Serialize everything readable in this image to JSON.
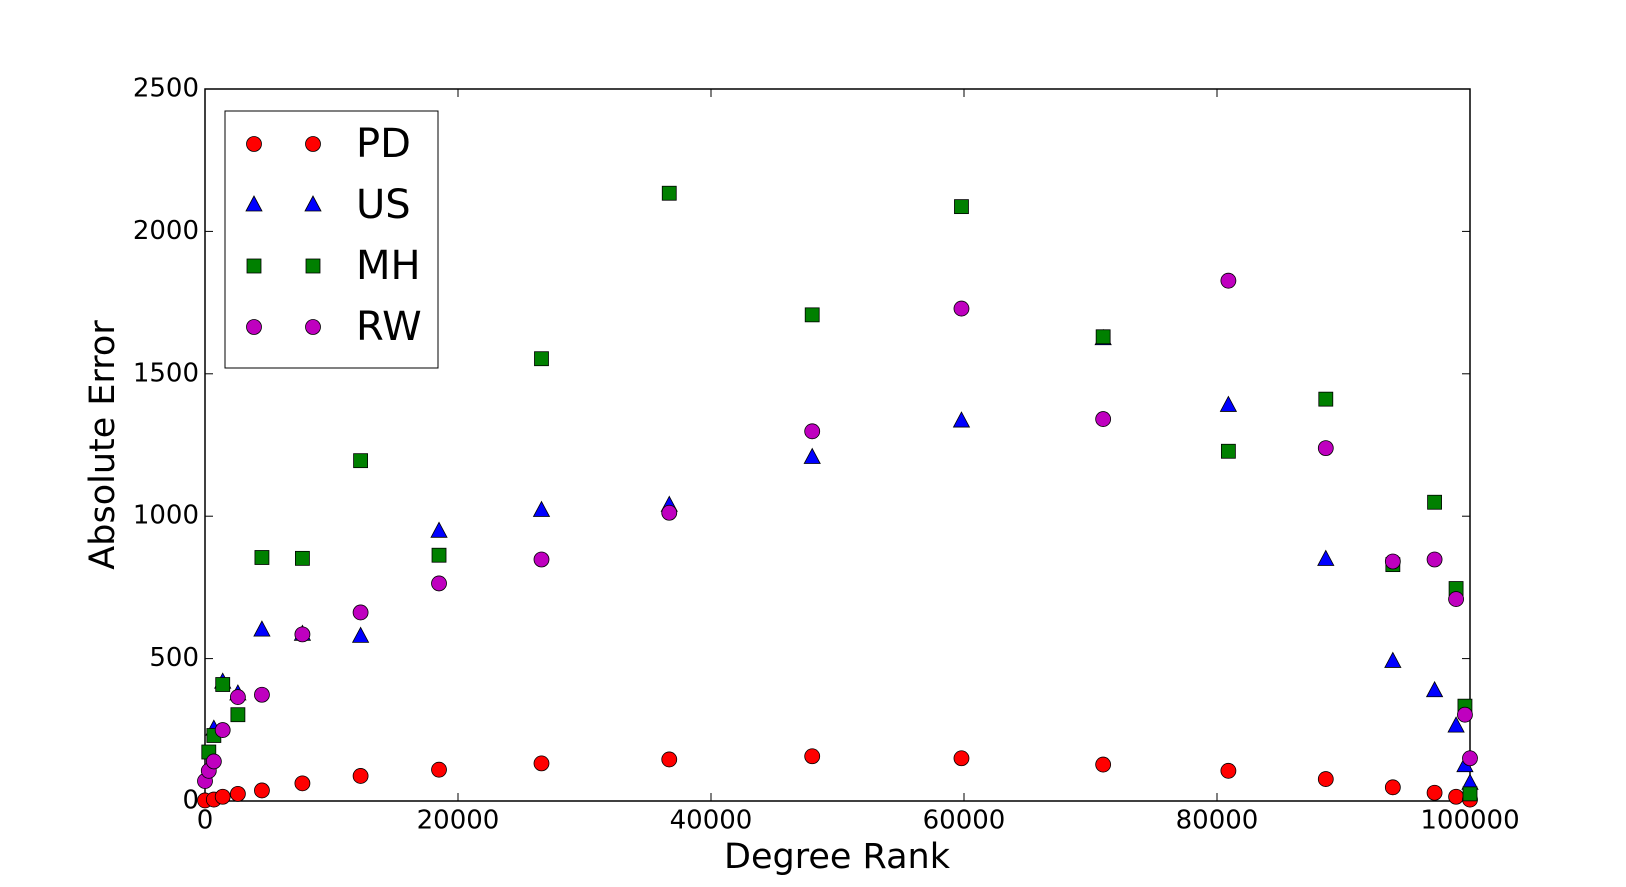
{
  "chart_data": {
    "type": "scatter",
    "xlabel": "Degree Rank",
    "ylabel": "Absolute Error",
    "xlim": [
      0,
      100000
    ],
    "ylim": [
      0,
      2500
    ],
    "xticks": [
      0,
      20000,
      40000,
      60000,
      80000,
      100000
    ],
    "yticks": [
      0,
      500,
      1000,
      1500,
      2000,
      2500
    ],
    "grid": false,
    "legend": "upper left",
    "series": [
      {
        "name": "PD",
        "color": "#ff0000",
        "marker": "circle",
        "x": [
          0,
          700,
          1400,
          2600,
          4500,
          7700,
          12300,
          18500,
          26600,
          36700,
          48000,
          59800,
          71000,
          80900,
          88600,
          93900,
          97200,
          98900,
          100000
        ],
        "values": [
          2,
          5,
          15,
          25,
          37,
          62,
          88,
          110,
          132,
          146,
          157,
          150,
          128,
          106,
          77,
          48,
          29,
          15,
          5
        ]
      },
      {
        "name": "US",
        "color": "#0000ff",
        "marker": "triangle",
        "x": [
          700,
          1400,
          2600,
          4500,
          7700,
          12300,
          18500,
          26600,
          36700,
          48000,
          59800,
          71000,
          80900,
          88600,
          93900,
          97200,
          98900,
          99600,
          100000
        ],
        "values": [
          252,
          417,
          376,
          600,
          585,
          578,
          947,
          1020,
          1038,
          1206,
          1334,
          1623,
          1389,
          848,
          490,
          387,
          263,
          124,
          62
        ]
      },
      {
        "name": "MH",
        "color": "#008000",
        "marker": "square",
        "x": [
          300,
          700,
          1400,
          2600,
          4500,
          7700,
          12300,
          18500,
          26600,
          36700,
          48000,
          59800,
          71000,
          80900,
          88600,
          93900,
          97200,
          98900,
          99600,
          100000
        ],
        "values": [
          172,
          230,
          409,
          303,
          855,
          852,
          1195,
          863,
          1553,
          2134,
          1707,
          2087,
          1630,
          1228,
          1411,
          830,
          1049,
          746,
          333,
          25
        ]
      },
      {
        "name": "RW",
        "color": "#bf00bf",
        "marker": "circle",
        "x": [
          0,
          300,
          700,
          1400,
          2600,
          4500,
          7700,
          12300,
          18500,
          26600,
          36700,
          48000,
          59800,
          71000,
          80900,
          88600,
          93900,
          97200,
          98900,
          99600,
          100000
        ],
        "values": [
          70,
          106,
          139,
          249,
          365,
          373,
          585,
          662,
          764,
          848,
          1012,
          1298,
          1729,
          1341,
          1827,
          1239,
          841,
          848,
          709,
          303,
          150
        ]
      }
    ]
  }
}
